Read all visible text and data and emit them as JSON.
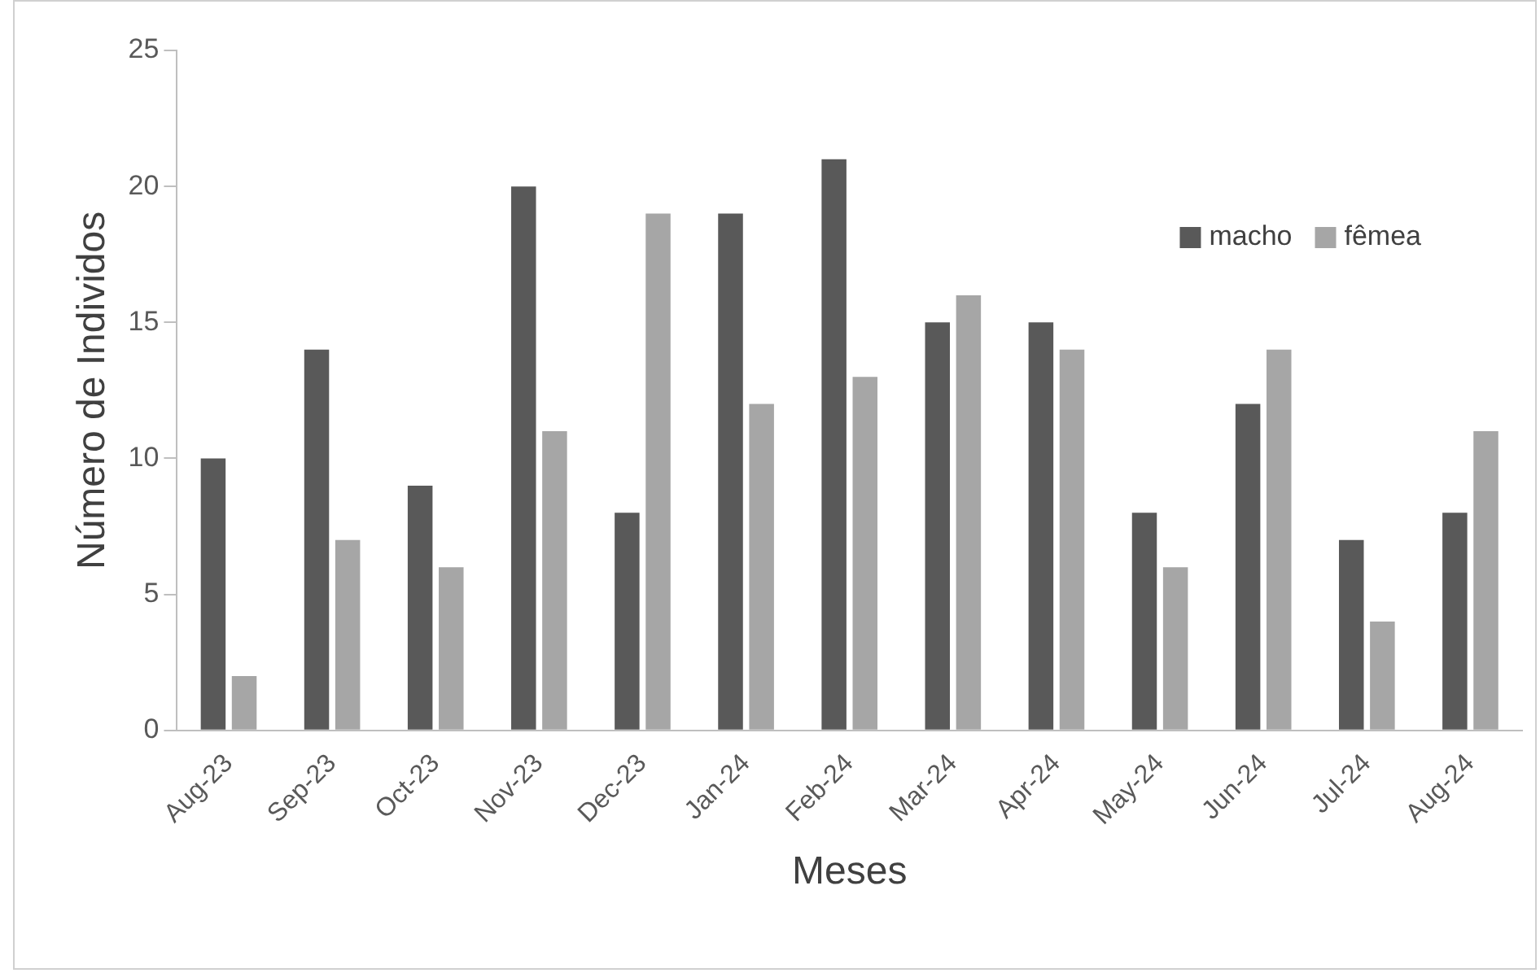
{
  "chart_data": {
    "type": "bar",
    "xlabel": "Meses",
    "ylabel": "Número de Individos",
    "categories": [
      "Aug-23",
      "Sep-23",
      "Oct-23",
      "Nov-23",
      "Dec-23",
      "Jan-24",
      "Feb-24",
      "Mar-24",
      "Apr-24",
      "May-24",
      "Jun-24",
      "Jul-24",
      "Aug-24"
    ],
    "series": [
      {
        "name": "macho",
        "color": "#595959",
        "values": [
          10,
          14,
          9,
          20,
          8,
          19,
          21,
          15,
          15,
          8,
          12,
          7,
          8
        ]
      },
      {
        "name": "fêmea",
        "color": "#a6a6a6",
        "values": [
          2,
          7,
          6,
          11,
          19,
          12,
          13,
          16,
          14,
          6,
          14,
          4,
          11
        ]
      }
    ],
    "ylim": [
      0,
      25
    ],
    "yticks": [
      0,
      5,
      10,
      15,
      20,
      25
    ],
    "grid": false,
    "legend": "top right"
  }
}
